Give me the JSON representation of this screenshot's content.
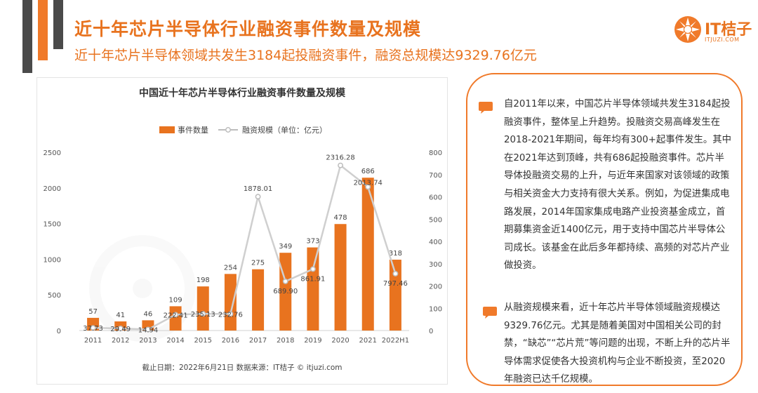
{
  "header": {
    "title": "近十年芯片半导体行业融资事件数量及规模",
    "subtitle": "近十年芯片半导体领域共发生3184起投融资事件，融资总规模达9329.76亿元"
  },
  "logo": {
    "name": "IT桔子",
    "url": "ITJUZI.COM",
    "color": "#f07a2a"
  },
  "chart_data": {
    "type": "bar",
    "title": "中国近十年芯片半导体行业融资事件数量及规模",
    "categories": [
      "2011",
      "2012",
      "2013",
      "2014",
      "2015",
      "2016",
      "2017",
      "2018",
      "2019",
      "2020",
      "2021",
      "2022H1"
    ],
    "series": [
      {
        "name": "事件数量",
        "type": "bar",
        "axis": "right",
        "color": "#e8731f",
        "values": [
          57,
          41,
          46,
          109,
          198,
          254,
          275,
          349,
          373,
          478,
          686,
          318
        ]
      },
      {
        "name": "融资规模（单位：亿元）",
        "type": "line",
        "axis": "left",
        "color": "#cccccc",
        "values": [
          37.73,
          29.49,
          14.94,
          222.41,
          235.13,
          232.76,
          1878.01,
          689.9,
          861.91,
          2316.28,
          2013.74,
          797.46
        ],
        "labels": [
          "37.73",
          "29.49",
          "14.94",
          "222.41",
          "235.13",
          "232.76",
          "1878.01",
          "689.90",
          "861.91",
          "2316.28",
          "2013.74",
          "797.46"
        ]
      }
    ],
    "left_axis": {
      "min": 0,
      "max": 2500,
      "ticks": [
        "0",
        "500",
        "1000",
        "1500",
        "2000",
        "2500"
      ]
    },
    "right_axis": {
      "min": 0,
      "max": 800,
      "ticks": [
        "0",
        "100",
        "200",
        "300",
        "400",
        "500",
        "600",
        "700",
        "800"
      ]
    },
    "legend_position": "top-center",
    "grid": false,
    "footnote": "截止日期：2022年6月21日    数据来源：IT桔子 © itjuzi.com"
  },
  "side_panel": {
    "paragraph1": "自2011年以来，中国芯片半导体领域共发生3184起投融资事件，整体呈上升趋势。投融资交易高峰发生在2018-2021年期间，每年均有300+起事件发生。其中在2021年达到顶峰，共有686起投融资事件。芯片半导体投融资交易的上升，与近年来国家对该领域的政策与相关资金大力支持有很大关系。例如，为促进集成电路发展，2014年国家集成电路产业投资基金成立，首期募集资金近1400亿元，用于支持中国芯片半导体公司成长。该基金在此后多年都持续、高频的对芯片产业做投资。",
    "paragraph2": "从融资规模来看，近十年芯片半导体领域融资规模达9329.76亿元。尤其是随着美国对中国相关公司的封禁，“缺芯”“芯片荒”等问题的出现，不断上升的芯片半导体需求促使各大投资机构与企业不断投资，至2020年融资已达千亿规模。"
  }
}
